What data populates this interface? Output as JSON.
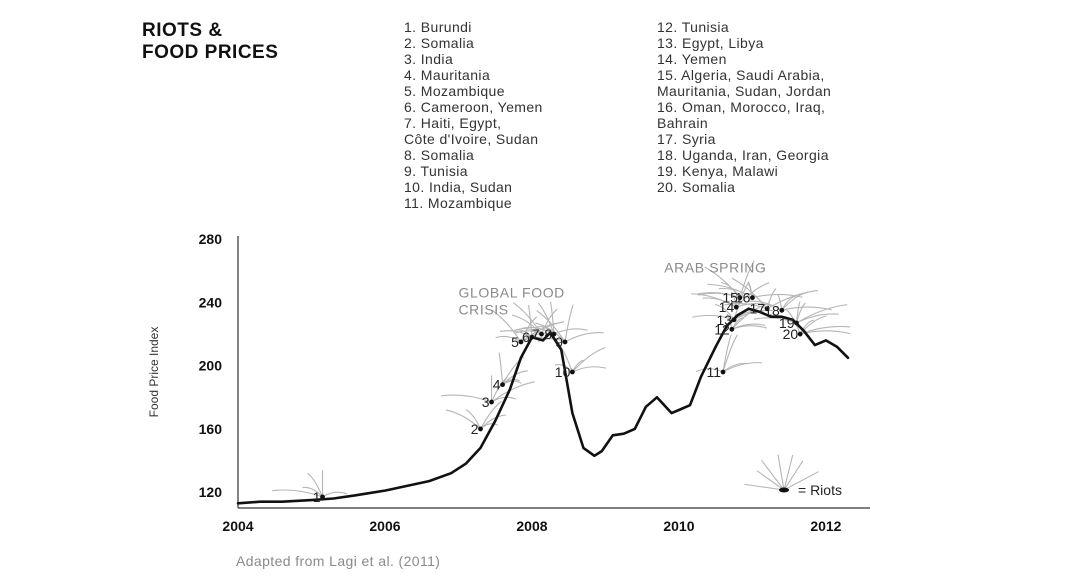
{
  "header": {
    "title_line1": "RIOTS &",
    "title_line2": "FOOD PRICES"
  },
  "legend": {
    "left": [
      "1. Burundi",
      "2. Somalia",
      "3. India",
      "4. Mauritania",
      "5. Mozambique",
      "6. Cameroon, Yemen",
      "7. Haiti, Egypt,",
      "Côte d'Ivoire, Sudan",
      "8. Somalia",
      "9. Tunisia",
      "10. India, Sudan",
      "11. Mozambique"
    ],
    "right": [
      "12. Tunisia",
      "13. Egypt, Libya",
      "14. Yemen",
      "15. Algeria, Saudi Arabia,",
      "Mauritania, Sudan, Jordan",
      "16. Oman, Morocco, Iraq,",
      "Bahrain",
      "17. Syria",
      "18. Uganda, Iran, Georgia",
      "19. Kenya, Malawi",
      "20. Somalia"
    ]
  },
  "footer": {
    "credit": "Adapted from Lagi et al. (2011)"
  },
  "colors": {
    "line": "#111111",
    "axis": "#333333",
    "annotation": "#8a8a8a",
    "burst": "#b5b5b5"
  },
  "chart_data": {
    "type": "line",
    "ylabel": "Food Price Index",
    "xlim": [
      2004,
      2012.6
    ],
    "ylim": [
      110,
      282
    ],
    "xticks": [
      2004,
      2006,
      2008,
      2010,
      2012
    ],
    "yticks": [
      120,
      160,
      200,
      240,
      280
    ],
    "x": [
      2004.0,
      2004.3,
      2004.6,
      2005.0,
      2005.3,
      2005.6,
      2006.0,
      2006.3,
      2006.6,
      2006.9,
      2007.1,
      2007.3,
      2007.5,
      2007.7,
      2007.85,
      2008.0,
      2008.15,
      2008.25,
      2008.4,
      2008.55,
      2008.7,
      2008.85,
      2008.95,
      2009.1,
      2009.25,
      2009.4,
      2009.55,
      2009.7,
      2009.9,
      2010.0,
      2010.15,
      2010.3,
      2010.5,
      2010.65,
      2010.8,
      2010.95,
      2011.1,
      2011.25,
      2011.4,
      2011.55,
      2011.7,
      2011.85,
      2012.0,
      2012.15,
      2012.3
    ],
    "y": [
      113,
      114,
      114,
      115,
      116,
      118,
      121,
      124,
      127,
      132,
      138,
      148,
      165,
      185,
      205,
      218,
      216,
      221,
      210,
      170,
      148,
      143,
      146,
      156,
      157,
      160,
      174,
      180,
      170,
      172,
      175,
      193,
      212,
      225,
      232,
      236,
      234,
      231,
      231,
      229,
      222,
      213,
      216,
      212,
      205
    ],
    "series": [
      {
        "name": "Food Price Index",
        "values": [
          113,
          114,
          114,
          115,
          116,
          118,
          121,
          124,
          127,
          132,
          138,
          148,
          165,
          185,
          205,
          218,
          216,
          221,
          210,
          170,
          148,
          143,
          146,
          156,
          157,
          160,
          174,
          180,
          170,
          172,
          175,
          193,
          212,
          225,
          232,
          236,
          234,
          231,
          231,
          229,
          222,
          213,
          216,
          212,
          205
        ]
      }
    ],
    "riots": [
      {
        "label": "1",
        "x": 2005.15,
        "y": 117
      },
      {
        "label": "2",
        "x": 2007.3,
        "y": 160
      },
      {
        "label": "3",
        "x": 2007.45,
        "y": 177
      },
      {
        "label": "4",
        "x": 2007.6,
        "y": 188
      },
      {
        "label": "5",
        "x": 2007.85,
        "y": 215
      },
      {
        "label": "6",
        "x": 2008.0,
        "y": 218
      },
      {
        "label": "7",
        "x": 2008.13,
        "y": 220
      },
      {
        "label": "8",
        "x": 2008.3,
        "y": 220
      },
      {
        "label": "9",
        "x": 2008.45,
        "y": 215
      },
      {
        "label": "10",
        "x": 2008.55,
        "y": 196
      },
      {
        "label": "11",
        "x": 2010.6,
        "y": 196
      },
      {
        "label": "12",
        "x": 2010.72,
        "y": 223
      },
      {
        "label": "13",
        "x": 2010.75,
        "y": 229
      },
      {
        "label": "14",
        "x": 2010.78,
        "y": 237
      },
      {
        "label": "15",
        "x": 2010.83,
        "y": 243
      },
      {
        "label": "16",
        "x": 2011.0,
        "y": 243
      },
      {
        "label": "17",
        "x": 2011.2,
        "y": 236
      },
      {
        "label": "18",
        "x": 2011.4,
        "y": 235
      },
      {
        "label": "19",
        "x": 2011.6,
        "y": 227
      },
      {
        "label": "20",
        "x": 2011.65,
        "y": 220
      }
    ],
    "annotations": [
      {
        "text_line1": "GLOBAL FOOD",
        "text_line2": "CRISIS",
        "x": 2007.0,
        "y": 243
      },
      {
        "text_line1": "ARAB SPRING",
        "text_line2": "",
        "x": 2009.8,
        "y": 259
      }
    ],
    "riot_key": "= Riots",
    "grid": false
  }
}
